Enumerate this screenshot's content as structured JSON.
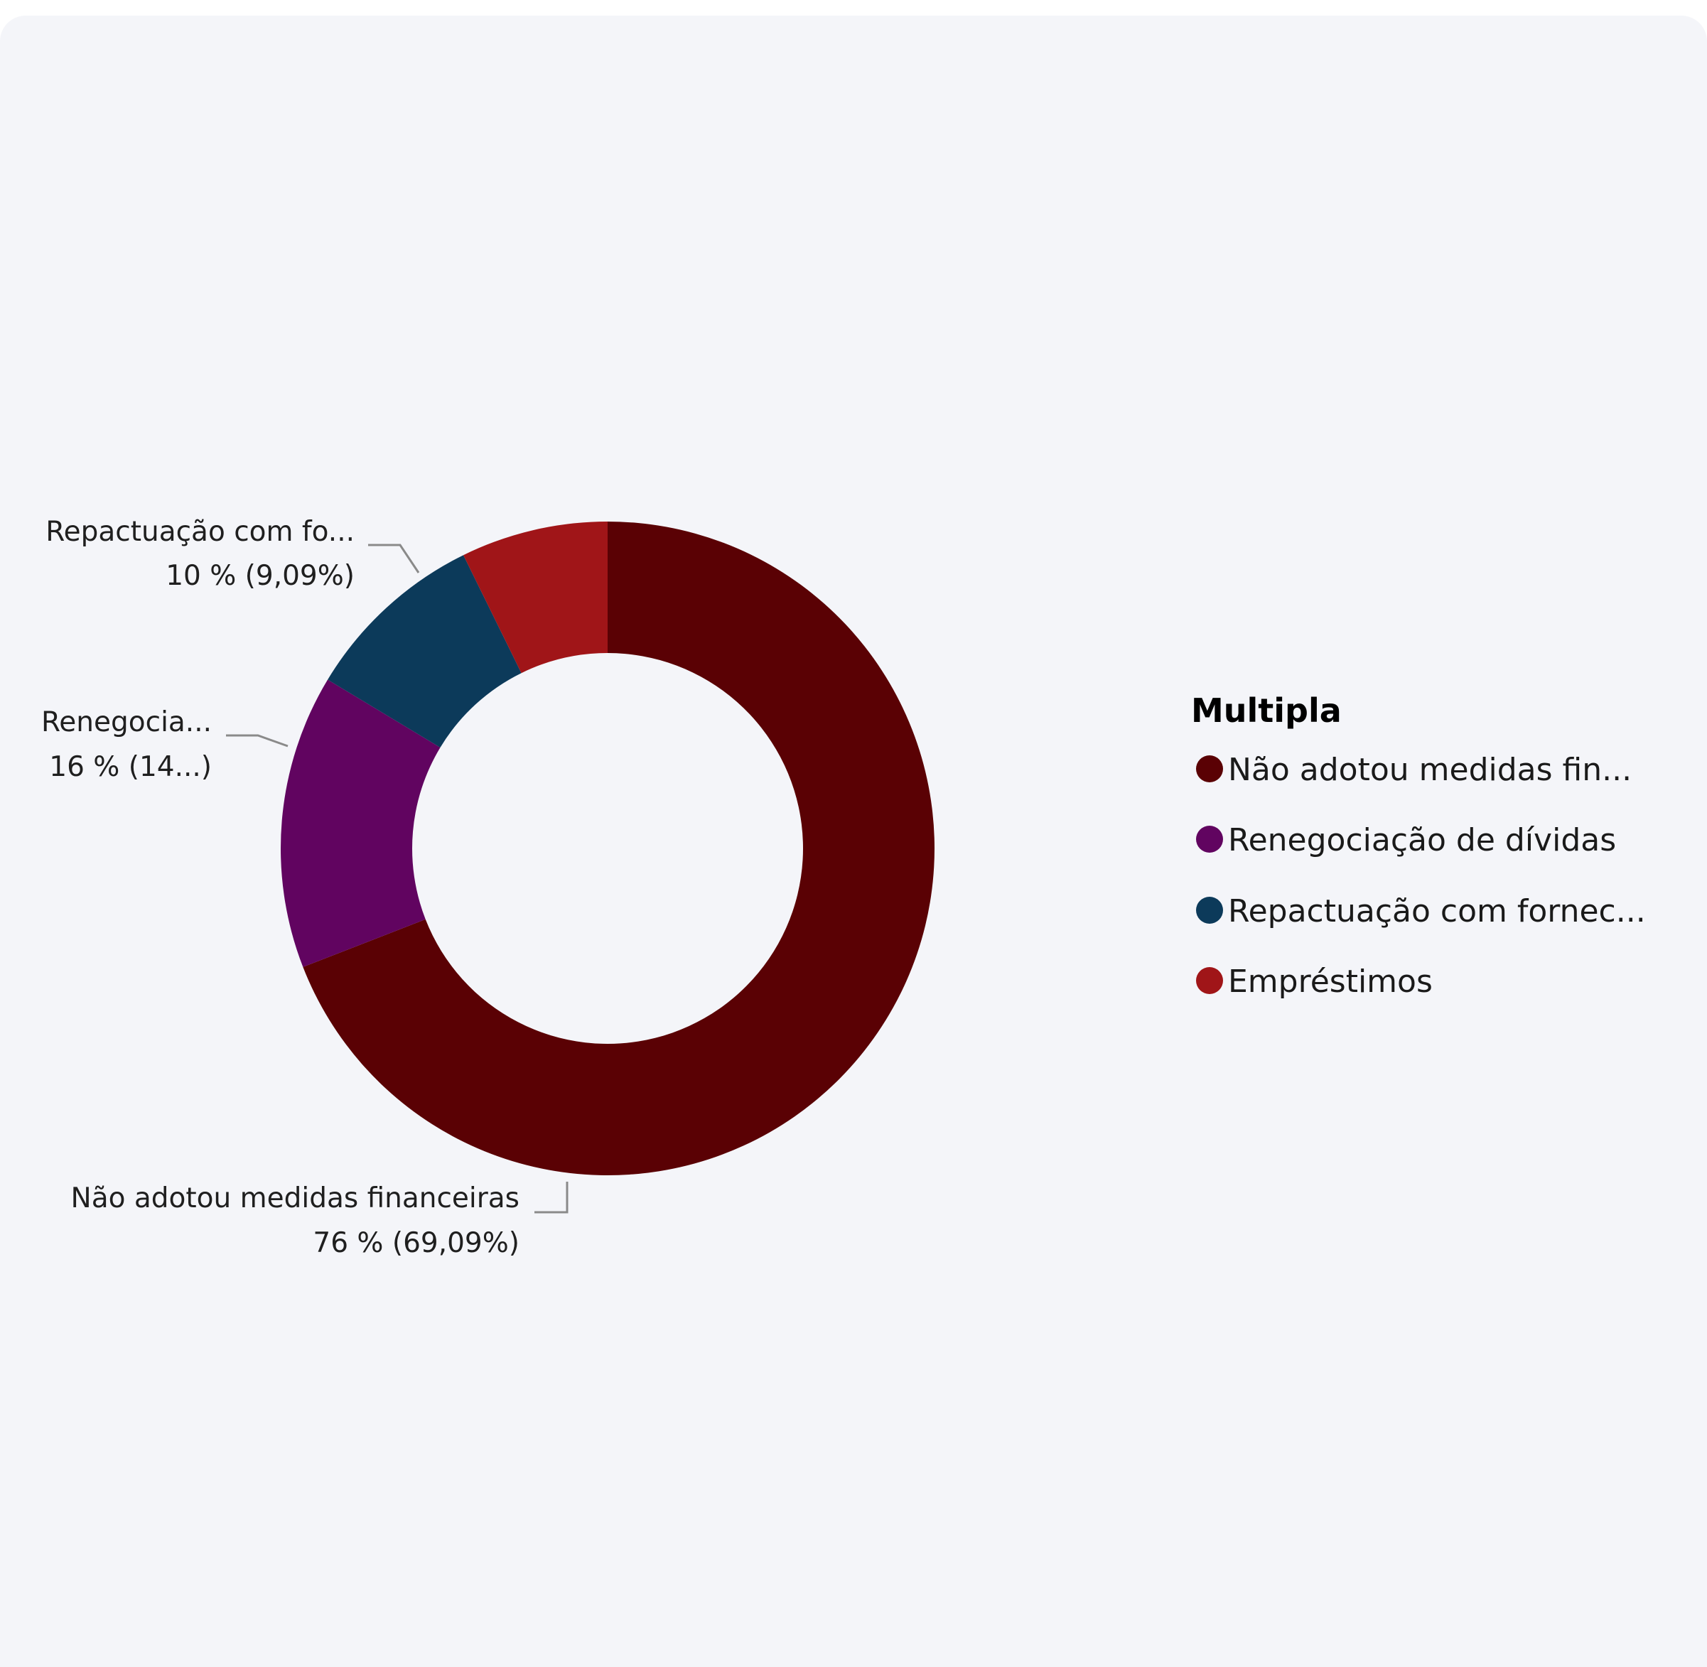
{
  "chart_data": {
    "type": "donut",
    "legend_title": "Multipla",
    "legend_position": "right",
    "slices": [
      {
        "name": "Não adotou medidas financeiras",
        "legend_label": "Não adotou medidas fin...",
        "value": 76,
        "percent": 69.09,
        "color": "#5a0104",
        "data_label_line1": "Não adotou medidas financeiras",
        "data_label_line2": "76 % (69,09%)"
      },
      {
        "name": "Renegociação de dívidas",
        "legend_label": "Renegociação de dívidas",
        "value": 16,
        "percent": 14.55,
        "color": "#610460",
        "data_label_line1": "Renegocia...",
        "data_label_line2": "16 % (14...)"
      },
      {
        "name": "Repactuação com fornecedores",
        "legend_label": "Repactuação com fornec...",
        "value": 10,
        "percent": 9.09,
        "color": "#0c3a5a",
        "data_label_line1": "Repactuação com fo...",
        "data_label_line2": "10 % (9,09%)"
      },
      {
        "name": "Empréstimos",
        "legend_label": "Empréstimos",
        "value": 8,
        "percent": 7.27,
        "color": "#a01518",
        "data_label_line1": "",
        "data_label_line2": ""
      }
    ]
  }
}
